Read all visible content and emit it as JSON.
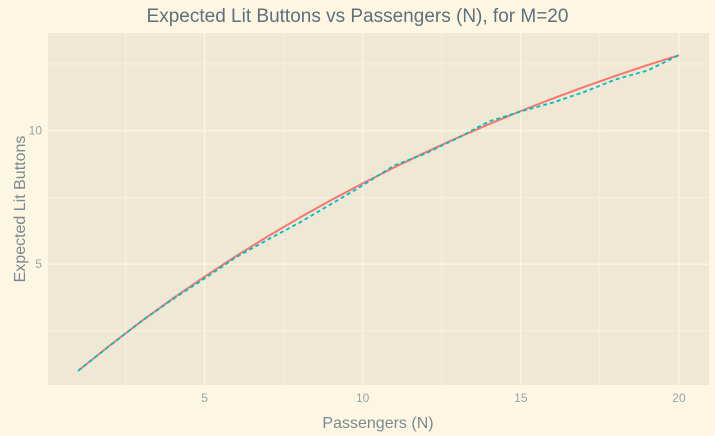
{
  "chart_data": {
    "type": "line",
    "title": "Expected Lit Buttons vs Passengers (N), for M=20",
    "xlabel": "Passengers (N)",
    "ylabel": "Expected Lit Buttons",
    "xlim": [
      0.05,
      20.95
    ],
    "ylim": [
      0.47,
      13.66
    ],
    "x_ticks": [
      5,
      10,
      15,
      20
    ],
    "y_ticks": [
      5,
      10
    ],
    "grid": true,
    "legend": "none",
    "colors": {
      "panel": "#EEE8D5",
      "background": "#FDF6E3",
      "grid": "#FDF6E3"
    },
    "series": [
      {
        "style": "solid",
        "color": "#F8766D",
        "x": [
          1,
          2,
          3,
          4,
          5,
          6,
          7,
          8,
          9,
          10,
          11,
          12,
          13,
          14,
          15,
          16,
          17,
          18,
          19,
          20
        ],
        "values": [
          1.0,
          1.95,
          2.857,
          3.715,
          4.529,
          5.303,
          6.038,
          6.736,
          7.399,
          8.025,
          8.626,
          9.195,
          9.735,
          10.248,
          10.736,
          11.199,
          11.639,
          12.057,
          12.454,
          12.83
        ]
      },
      {
        "style": "dashed",
        "color": "#00BFC4",
        "x": [
          1,
          2,
          3,
          4,
          5,
          6,
          7,
          8,
          9,
          10,
          11,
          12,
          13,
          14,
          15,
          16,
          17,
          18,
          19,
          20
        ],
        "values": [
          1.0,
          1.94,
          2.86,
          3.69,
          4.46,
          5.26,
          5.92,
          6.55,
          7.25,
          7.95,
          8.7,
          9.15,
          9.72,
          10.35,
          10.72,
          11.05,
          11.45,
          11.92,
          12.25,
          12.83
        ]
      }
    ]
  }
}
